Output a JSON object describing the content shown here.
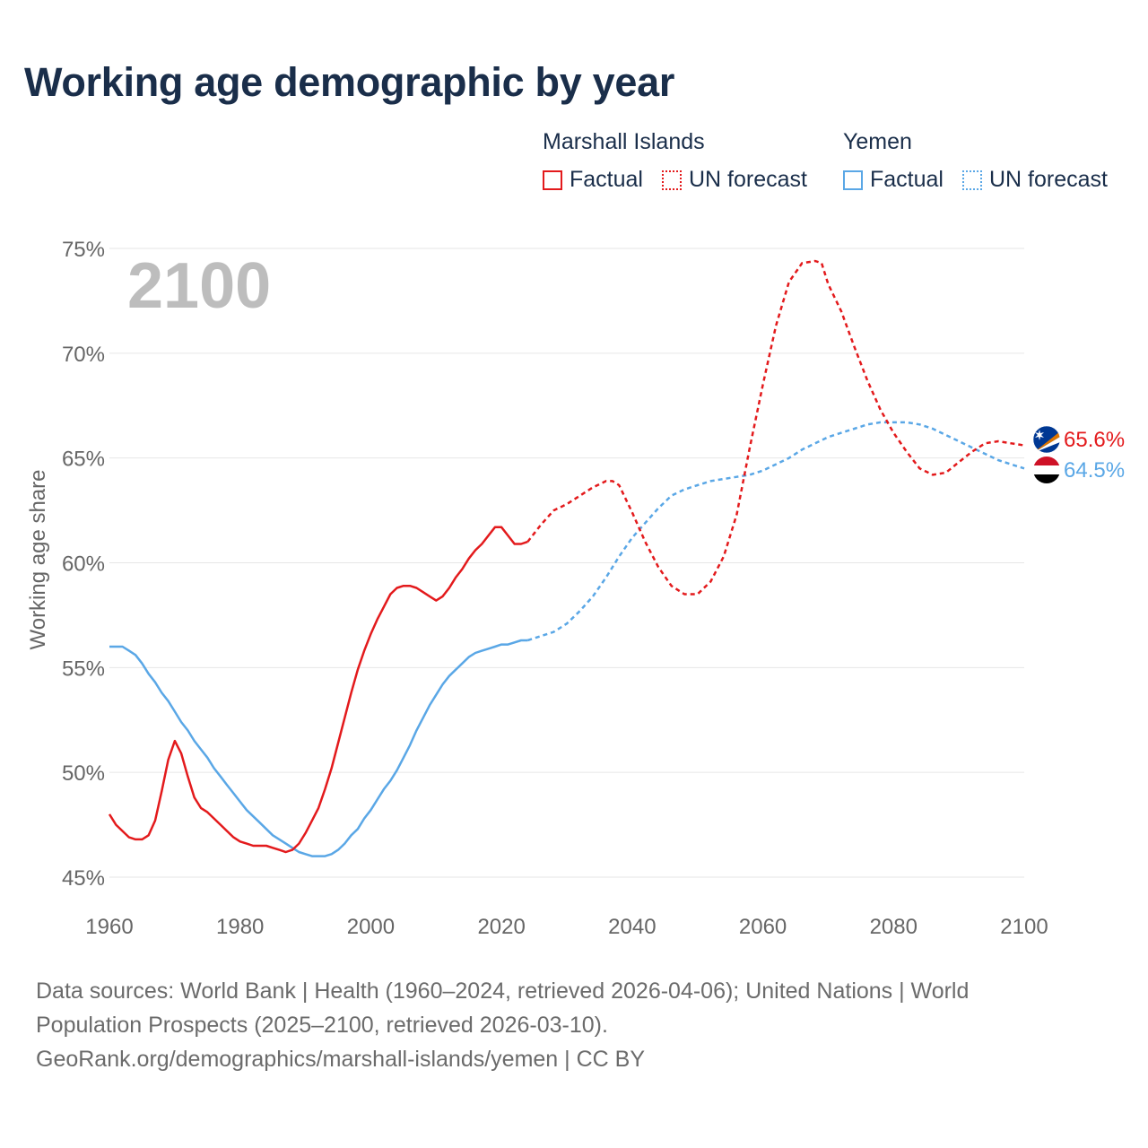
{
  "title": "Working age demographic by year",
  "legend": {
    "groups": [
      {
        "name": "Marshall Islands",
        "color": "#e31a1c",
        "factual_label": "Factual",
        "forecast_label": "UN forecast"
      },
      {
        "name": "Yemen",
        "color": "#5aa7e6",
        "factual_label": "Factual",
        "forecast_label": "UN forecast"
      }
    ]
  },
  "year_label": "2100",
  "end_labels": {
    "marshall": "65.6%",
    "yemen": "64.5%"
  },
  "icons": {
    "marshall": "marshall-islands-flag-icon",
    "yemen": "yemen-flag-icon"
  },
  "footer": {
    "sources": "Data sources: World Bank | Health (1960–2024, retrieved 2026-04-06); United Nations | World Population Prospects (2025–2100, retrieved 2026-03-10).",
    "credit": "GeoRank.org/demographics/marshall-islands/yemen | CC BY"
  },
  "chart_data": {
    "type": "line",
    "title": "Working age demographic by year",
    "xlabel": "",
    "ylabel": "Working age share",
    "xlim": [
      1960,
      2100
    ],
    "ylim": [
      45,
      75
    ],
    "x_ticks": [
      1960,
      1980,
      2000,
      2020,
      2040,
      2060,
      2080,
      2100
    ],
    "y_ticks": [
      45,
      50,
      55,
      60,
      65,
      70,
      75
    ],
    "y_tick_labels": [
      "45%",
      "50%",
      "55%",
      "60%",
      "65%",
      "70%",
      "75%"
    ],
    "grid": true,
    "factual_end_year": 2024,
    "series": [
      {
        "name": "Marshall Islands",
        "color": "#e31a1c",
        "x": [
          1960,
          1961,
          1962,
          1963,
          1964,
          1965,
          1966,
          1967,
          1968,
          1969,
          1970,
          1971,
          1972,
          1973,
          1974,
          1975,
          1976,
          1977,
          1978,
          1979,
          1980,
          1981,
          1982,
          1983,
          1984,
          1985,
          1986,
          1987,
          1988,
          1989,
          1990,
          1991,
          1992,
          1993,
          1994,
          1995,
          1996,
          1997,
          1998,
          1999,
          2000,
          2001,
          2002,
          2003,
          2004,
          2005,
          2006,
          2007,
          2008,
          2009,
          2010,
          2011,
          2012,
          2013,
          2014,
          2015,
          2016,
          2017,
          2018,
          2019,
          2020,
          2021,
          2022,
          2023,
          2024,
          2026,
          2028,
          2030,
          2032,
          2034,
          2036,
          2037,
          2038,
          2040,
          2042,
          2044,
          2046,
          2048,
          2050,
          2052,
          2054,
          2056,
          2058,
          2060,
          2062,
          2064,
          2066,
          2068,
          2069,
          2070,
          2072,
          2074,
          2076,
          2078,
          2080,
          2082,
          2084,
          2086,
          2088,
          2090,
          2092,
          2094,
          2096,
          2098,
          2100
        ],
        "values": [
          48.0,
          47.5,
          47.2,
          46.9,
          46.8,
          46.8,
          47.0,
          47.7,
          49.1,
          50.6,
          51.5,
          50.9,
          49.8,
          48.8,
          48.3,
          48.1,
          47.8,
          47.5,
          47.2,
          46.9,
          46.7,
          46.6,
          46.5,
          46.5,
          46.5,
          46.4,
          46.3,
          46.2,
          46.3,
          46.6,
          47.1,
          47.7,
          48.3,
          49.2,
          50.2,
          51.4,
          52.6,
          53.8,
          54.9,
          55.8,
          56.6,
          57.3,
          57.9,
          58.5,
          58.8,
          58.9,
          58.9,
          58.8,
          58.6,
          58.4,
          58.2,
          58.4,
          58.8,
          59.3,
          59.7,
          60.2,
          60.6,
          60.9,
          61.3,
          61.7,
          61.7,
          61.3,
          60.9,
          60.9,
          61.0,
          61.8,
          62.5,
          62.8,
          63.2,
          63.6,
          63.9,
          63.9,
          63.7,
          62.4,
          61.0,
          59.8,
          58.9,
          58.5,
          58.5,
          59.1,
          60.3,
          62.3,
          65.5,
          68.5,
          71.3,
          73.4,
          74.3,
          74.4,
          74.3,
          73.3,
          72.0,
          70.3,
          68.7,
          67.3,
          66.2,
          65.3,
          64.5,
          64.2,
          64.3,
          64.8,
          65.3,
          65.7,
          65.8,
          65.7,
          65.6
        ]
      },
      {
        "name": "Yemen",
        "color": "#5aa7e6",
        "x": [
          1960,
          1961,
          1962,
          1963,
          1964,
          1965,
          1966,
          1967,
          1968,
          1969,
          1970,
          1971,
          1972,
          1973,
          1974,
          1975,
          1976,
          1977,
          1978,
          1979,
          1980,
          1981,
          1982,
          1983,
          1984,
          1985,
          1986,
          1987,
          1988,
          1989,
          1990,
          1991,
          1992,
          1993,
          1994,
          1995,
          1996,
          1997,
          1998,
          1999,
          2000,
          2001,
          2002,
          2003,
          2004,
          2005,
          2006,
          2007,
          2008,
          2009,
          2010,
          2011,
          2012,
          2013,
          2014,
          2015,
          2016,
          2017,
          2018,
          2019,
          2020,
          2021,
          2022,
          2023,
          2024,
          2026,
          2028,
          2030,
          2032,
          2034,
          2036,
          2038,
          2040,
          2042,
          2044,
          2046,
          2048,
          2050,
          2052,
          2054,
          2056,
          2058,
          2060,
          2062,
          2064,
          2066,
          2068,
          2070,
          2072,
          2074,
          2076,
          2078,
          2080,
          2082,
          2084,
          2086,
          2088,
          2090,
          2092,
          2094,
          2096,
          2098,
          2100
        ],
        "values": [
          56.0,
          56.0,
          56.0,
          55.8,
          55.6,
          55.2,
          54.7,
          54.3,
          53.8,
          53.4,
          52.9,
          52.4,
          52.0,
          51.5,
          51.1,
          50.7,
          50.2,
          49.8,
          49.4,
          49.0,
          48.6,
          48.2,
          47.9,
          47.6,
          47.3,
          47.0,
          46.8,
          46.6,
          46.4,
          46.2,
          46.1,
          46.0,
          46.0,
          46.0,
          46.1,
          46.3,
          46.6,
          47.0,
          47.3,
          47.8,
          48.2,
          48.7,
          49.2,
          49.6,
          50.1,
          50.7,
          51.3,
          52.0,
          52.6,
          53.2,
          53.7,
          54.2,
          54.6,
          54.9,
          55.2,
          55.5,
          55.7,
          55.8,
          55.9,
          56.0,
          56.1,
          56.1,
          56.2,
          56.3,
          56.3,
          56.5,
          56.7,
          57.1,
          57.7,
          58.4,
          59.3,
          60.3,
          61.2,
          61.9,
          62.6,
          63.2,
          63.5,
          63.7,
          63.9,
          64.0,
          64.1,
          64.2,
          64.4,
          64.7,
          65.0,
          65.4,
          65.7,
          66.0,
          66.2,
          66.4,
          66.6,
          66.7,
          66.7,
          66.7,
          66.6,
          66.4,
          66.1,
          65.8,
          65.5,
          65.2,
          64.9,
          64.7,
          64.5
        ]
      }
    ]
  }
}
